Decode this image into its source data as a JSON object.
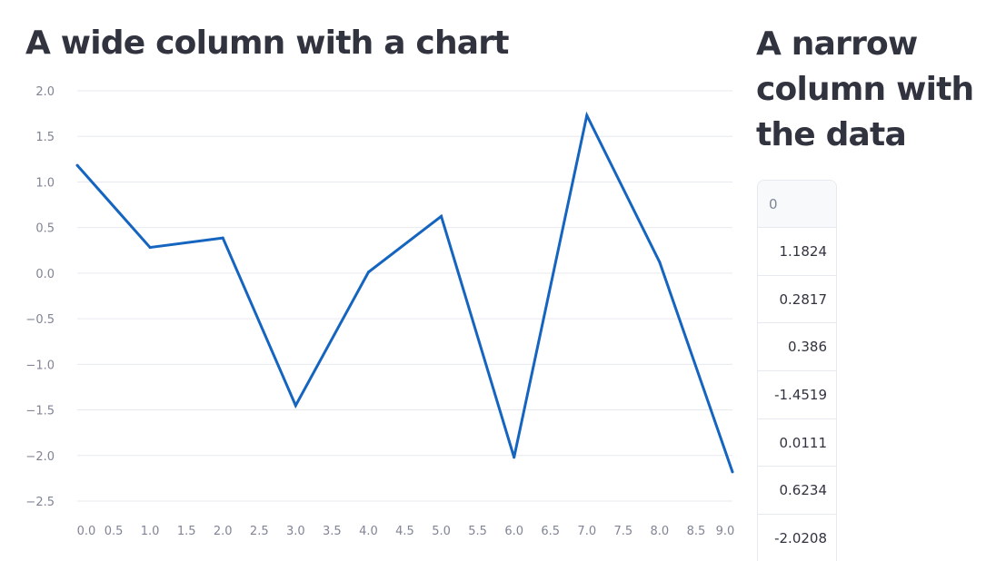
{
  "wide_column": {
    "title": "A wide column with a chart"
  },
  "narrow_column": {
    "title": "A narrow column with the data",
    "table": {
      "header": "0",
      "values": [
        "1.1824",
        "0.2817",
        "0.386",
        "-1.4519",
        "0.0111",
        "0.6234",
        "-2.0208"
      ]
    }
  },
  "colors": {
    "line": "#1565c0",
    "grid": "#e6e9ef",
    "text": "#31333f",
    "muted": "#808495"
  },
  "chart_data": {
    "type": "line",
    "x": [
      0,
      1,
      2,
      3,
      4,
      5,
      6,
      7,
      8,
      9
    ],
    "series": [
      {
        "values": [
          1.1824,
          0.2817,
          0.386,
          -1.4519,
          0.0111,
          0.6234,
          -2.0208,
          1.73,
          0.12,
          -2.18
        ]
      }
    ],
    "xlim": [
      0,
      9
    ],
    "ylim": [
      -2.5,
      2.0
    ],
    "x_ticks": [
      "0.0",
      "0.5",
      "1.0",
      "1.5",
      "2.0",
      "2.5",
      "3.0",
      "3.5",
      "4.0",
      "4.5",
      "5.0",
      "5.5",
      "6.0",
      "6.5",
      "7.0",
      "7.5",
      "8.0",
      "8.5",
      "9.0"
    ],
    "y_ticks": [
      "2.0",
      "1.5",
      "1.0",
      "0.5",
      "0.0",
      "−0.5",
      "−1.0",
      "−1.5",
      "−2.0",
      "−2.5"
    ],
    "grid": true,
    "title": "",
    "xlabel": "",
    "ylabel": ""
  }
}
